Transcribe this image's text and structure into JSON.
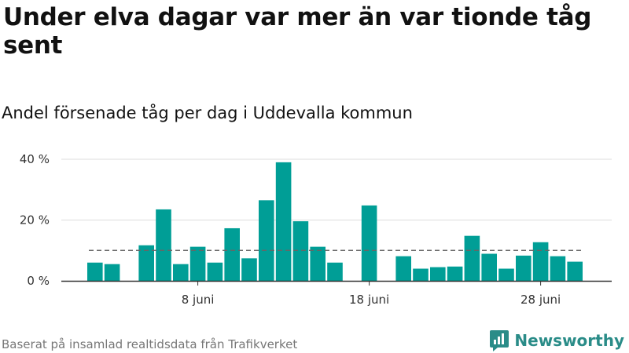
{
  "title": "Under elva dagar var mer än var tionde tåg sent",
  "subtitle": "Andel försenade tåg per dag i Uddevalla kommun",
  "footer": "Baserat på insamlad realtidsdata från Trafikverket",
  "brand": {
    "name": "Newsworthy",
    "icon": "bar-chart-logo-icon"
  },
  "colors": {
    "bar": "#009e96",
    "reference": "#666666",
    "grid": "#dddddd",
    "axis": "#333333",
    "brand": "#2a8c88"
  },
  "chart_data": {
    "type": "bar",
    "x": [
      "2025-06-02",
      "2025-06-03",
      "2025-06-04",
      "2025-06-05",
      "2025-06-06",
      "2025-06-07",
      "2025-06-08",
      "2025-06-09",
      "2025-06-10",
      "2025-06-11",
      "2025-06-12",
      "2025-06-13",
      "2025-06-14",
      "2025-06-15",
      "2025-06-16",
      "2025-06-17",
      "2025-06-18",
      "2025-06-19",
      "2025-06-20",
      "2025-06-21",
      "2025-06-22",
      "2025-06-23",
      "2025-06-24",
      "2025-06-25",
      "2025-06-26",
      "2025-06-27",
      "2025-06-28",
      "2025-06-29"
    ],
    "values": [
      6,
      5.5,
      null,
      11.7,
      23.5,
      5.5,
      11.2,
      6,
      17.3,
      7.4,
      26.5,
      39,
      19.6,
      11.2,
      6,
      null,
      24.8,
      0,
      8.1,
      4,
      4.5,
      4.7,
      14.8,
      8.9,
      4,
      8.3,
      12.7,
      8.1
    ],
    "values_extra": [
      6.3
    ],
    "x_extra": [
      "2025-06-30"
    ],
    "reference_line": 10,
    "yticks": [
      0,
      20,
      40
    ],
    "ytick_labels": [
      "0 %",
      "20 %",
      "40 %"
    ],
    "ylim": [
      0,
      40
    ],
    "xticks": [
      "2025-06-08",
      "2025-06-18",
      "2025-06-28"
    ],
    "xtick_labels": [
      "8 juni",
      "18 juni",
      "28 juni"
    ],
    "grid": true
  }
}
